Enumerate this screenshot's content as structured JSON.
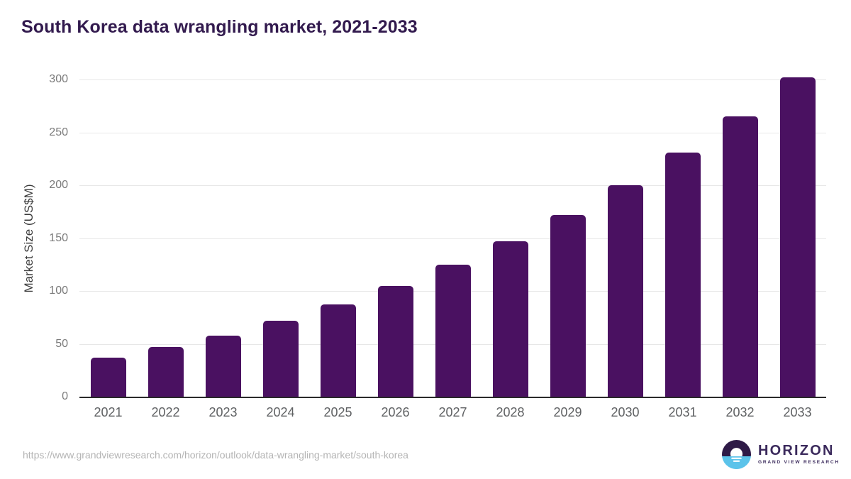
{
  "chart_data": {
    "type": "bar",
    "title": "South Korea data wrangling market, 2021-2033",
    "categories": [
      "2021",
      "2022",
      "2023",
      "2024",
      "2025",
      "2026",
      "2027",
      "2028",
      "2029",
      "2030",
      "2031",
      "2032",
      "2033"
    ],
    "values": [
      37,
      47,
      58,
      72,
      87,
      105,
      125,
      147,
      172,
      200,
      231,
      265,
      302
    ],
    "xlabel": "",
    "ylabel": "Market Size (US$M)",
    "ylim": [
      0,
      300
    ],
    "yticks": [
      0,
      50,
      100,
      150,
      200,
      250,
      300
    ],
    "grid": true,
    "legend": false,
    "bar_color": "#4a1161"
  },
  "colors": {
    "bar": "#4a1161",
    "title_text": "#321a4e",
    "y_axis_title_text": "#3d3d3d",
    "y_tick_text": "#7a7a7a",
    "x_tick_text": "#5f6163",
    "gridline": "#e7e7e7",
    "baseline": "#2a2a2a",
    "url_text": "#b4b4b4",
    "logo_purple": "#2e1a47",
    "logo_blue": "#5bc3ea",
    "logo_text": "#3b2a5c"
  },
  "footer": {
    "source_url": "https://www.grandviewresearch.com/horizon/outlook/data-wrangling-market/south-korea",
    "logo": {
      "name": "HORIZON",
      "subtitle": "GRAND VIEW RESEARCH"
    }
  }
}
